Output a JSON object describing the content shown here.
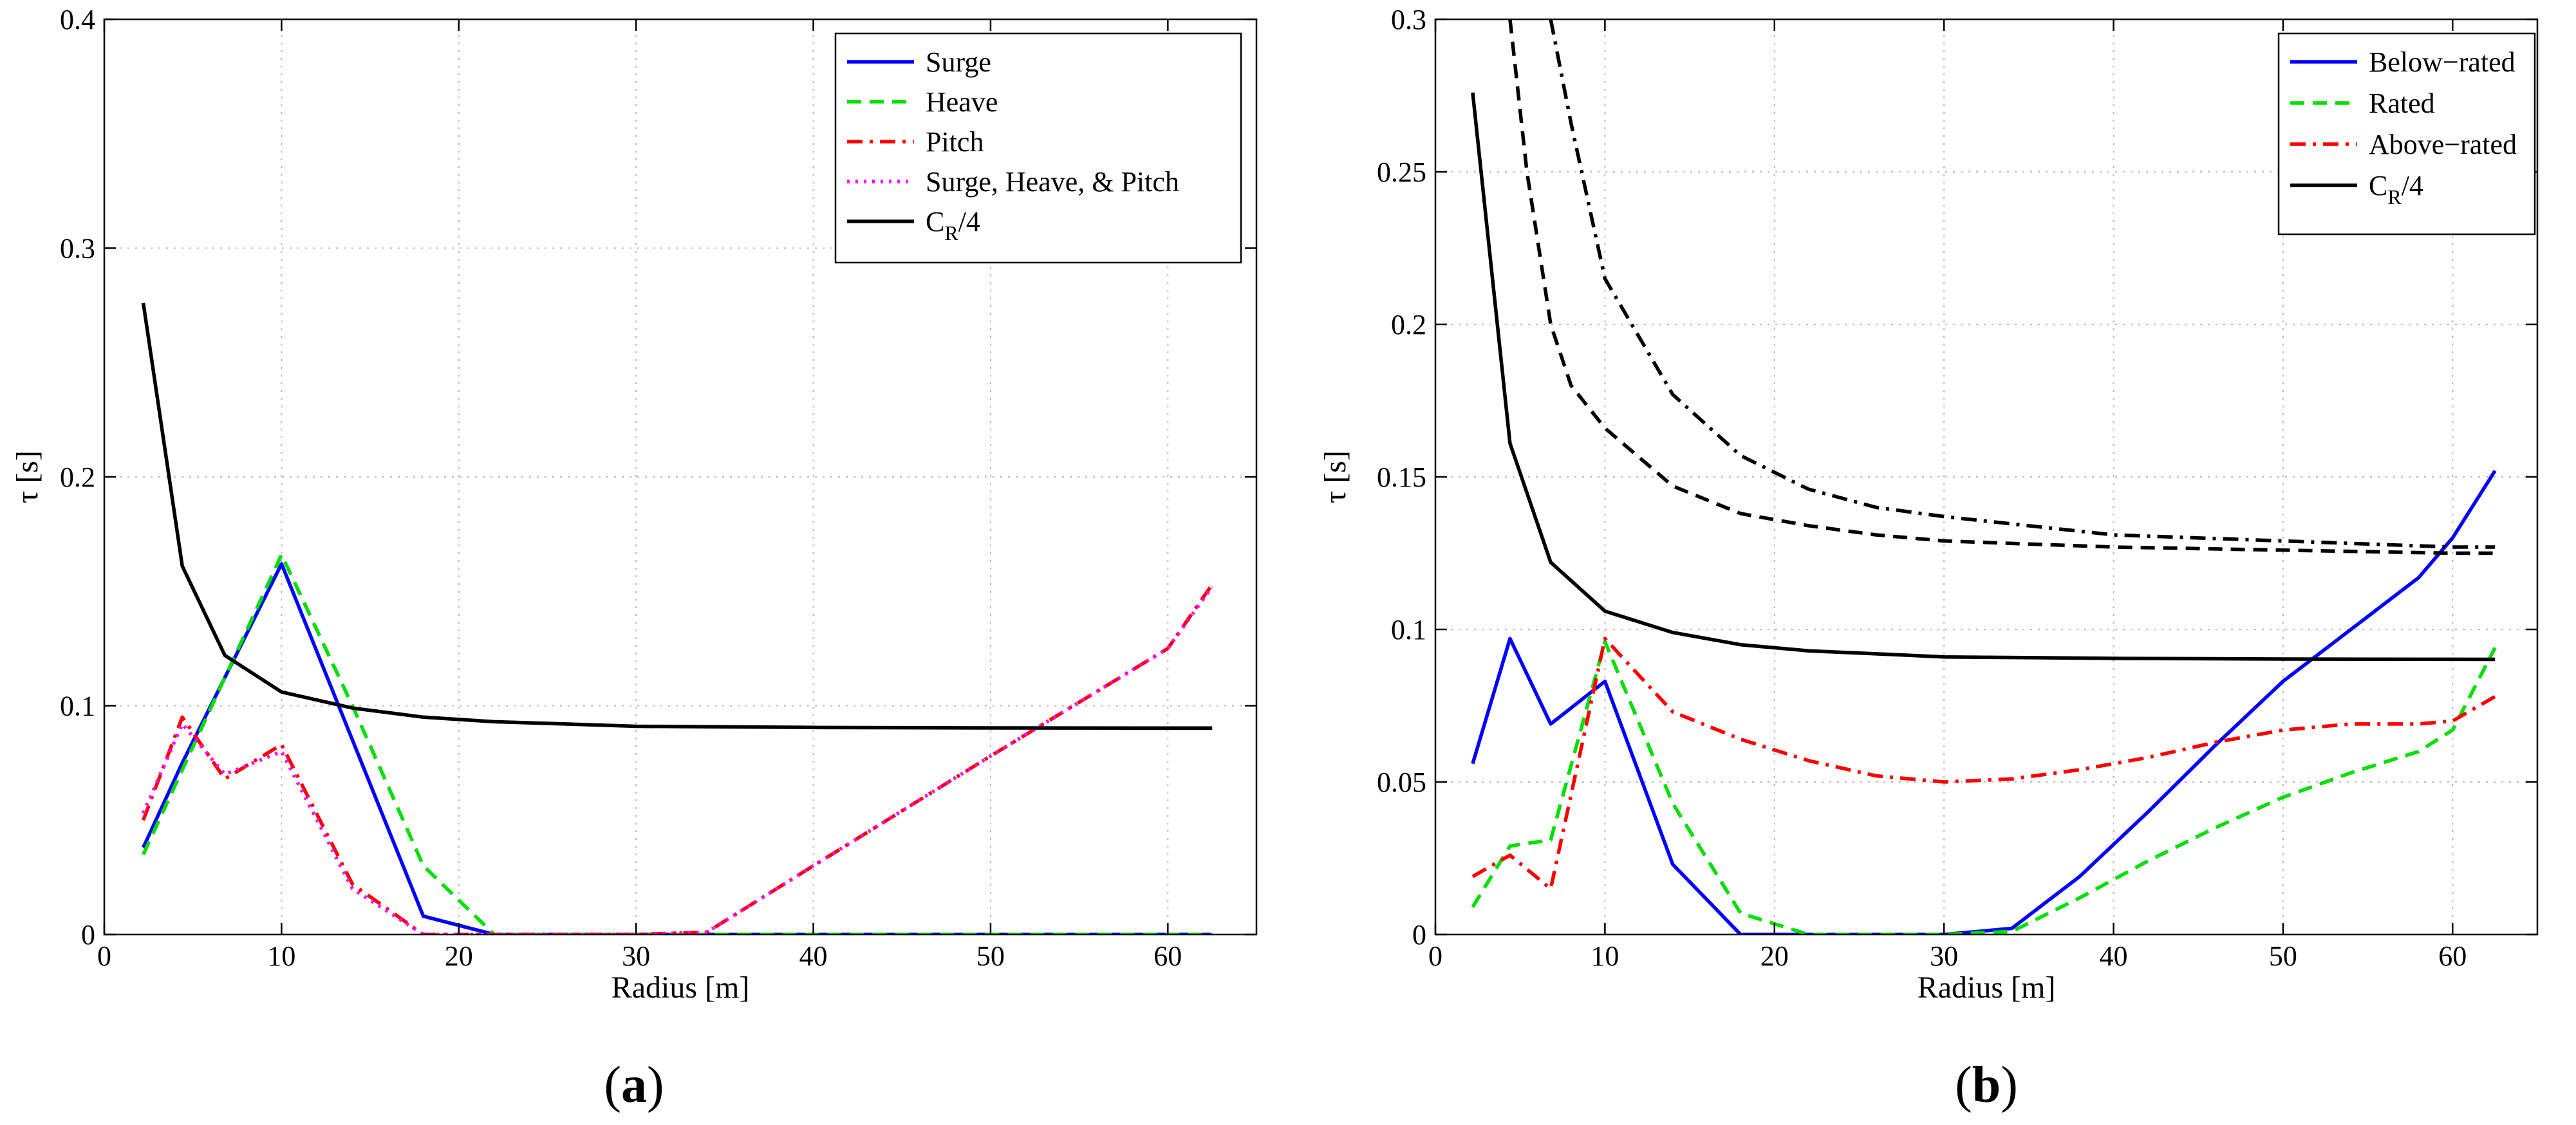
{
  "chart_data": [
    {
      "type": "line",
      "caption": {
        "open": "(",
        "letter": "a",
        "close": ")"
      },
      "xlabel": "Radius [m]",
      "ylabel": "τ [s]",
      "xlim": [
        0,
        65
      ],
      "ylim": [
        0,
        0.4
      ],
      "xticks": [
        0,
        10,
        20,
        30,
        40,
        50,
        60
      ],
      "yticks": [
        0,
        0.1,
        0.2,
        0.3,
        0.4
      ],
      "ytick_labels": [
        "0",
        "0.1",
        "0.2",
        "0.3",
        "0.4"
      ],
      "grid": true,
      "legend_position": "top-right",
      "series": [
        {
          "name": "Surge",
          "label": {
            "main": "Surge",
            "sub": "",
            "post": ""
          },
          "color": "#0000ff",
          "dash": "solid",
          "x": [
            2.2,
            4.4,
            10.0,
            18.0,
            22.0,
            62.5
          ],
          "y": [
            0.038,
            0.075,
            0.162,
            0.008,
            0.0,
            0.0
          ]
        },
        {
          "name": "Heave",
          "label": {
            "main": "Heave",
            "sub": "",
            "post": ""
          },
          "color": "#00e000",
          "dash": "dashed",
          "x": [
            2.2,
            10.0,
            14.0,
            18.0,
            22.0,
            62.5
          ],
          "y": [
            0.035,
            0.166,
            0.1,
            0.03,
            0.0,
            0.0
          ]
        },
        {
          "name": "Pitch",
          "label": {
            "main": "Pitch",
            "sub": "",
            "post": ""
          },
          "color": "#ff0000",
          "dash": "dashdot",
          "x": [
            2.2,
            4.4,
            6.8,
            10.0,
            14.0,
            18.0,
            30.0,
            34.0,
            40.0,
            50.0,
            60.0,
            62.5
          ],
          "y": [
            0.05,
            0.095,
            0.068,
            0.083,
            0.022,
            0.0,
            0.0,
            0.001,
            0.03,
            0.078,
            0.125,
            0.153
          ]
        },
        {
          "name": "Surge, Heave, & Pitch",
          "label": {
            "main": "Surge, Heave, & Pitch",
            "sub": "",
            "post": ""
          },
          "color": "#ff00ff",
          "dash": "dotted",
          "x": [
            2.2,
            4.4,
            6.8,
            10.0,
            14.0,
            18.0,
            30.0,
            34.0,
            40.0,
            50.0,
            60.0,
            62.5
          ],
          "y": [
            0.053,
            0.092,
            0.07,
            0.08,
            0.02,
            0.0,
            0.0,
            0.001,
            0.03,
            0.078,
            0.125,
            0.152
          ]
        },
        {
          "name": "C_R/4",
          "label": {
            "main": "C",
            "sub": "R",
            "post": "/4"
          },
          "color": "#000000",
          "dash": "solid",
          "x": [
            2.2,
            4.4,
            6.8,
            10.0,
            14.0,
            18.0,
            22.0,
            26.0,
            30.0,
            40.0,
            50.0,
            62.5
          ],
          "y": [
            0.276,
            0.161,
            0.122,
            0.106,
            0.099,
            0.095,
            0.093,
            0.092,
            0.091,
            0.0905,
            0.0903,
            0.0902
          ]
        }
      ]
    },
    {
      "type": "line",
      "caption": {
        "open": "(",
        "letter": "b",
        "close": ")"
      },
      "xlabel": "Radius [m]",
      "ylabel": "τ [s]",
      "xlim": [
        0,
        65
      ],
      "ylim": [
        0,
        0.3
      ],
      "xticks": [
        0,
        10,
        20,
        30,
        40,
        50,
        60
      ],
      "yticks": [
        0,
        0.05,
        0.1,
        0.15,
        0.2,
        0.25,
        0.3
      ],
      "ytick_labels": [
        "0",
        "0.05",
        "0.1",
        "0.15",
        "0.2",
        "0.25",
        "0.3"
      ],
      "grid": true,
      "legend_position": "top-right",
      "series": [
        {
          "name": "Below−rated",
          "label": {
            "main": "Below−rated",
            "sub": "",
            "post": ""
          },
          "color": "#0000ff",
          "dash": "solid",
          "x": [
            2.2,
            4.4,
            6.8,
            10.0,
            14.0,
            18.0,
            22.0,
            30.0,
            34.0,
            38.0,
            42.0,
            46.0,
            50.0,
            54.0,
            58.0,
            60.0,
            62.5
          ],
          "y": [
            0.056,
            0.097,
            0.069,
            0.083,
            0.023,
            0.0,
            0.0,
            0.0,
            0.002,
            0.019,
            0.04,
            0.062,
            0.083,
            0.1,
            0.117,
            0.13,
            0.152
          ]
        },
        {
          "name": "Rated",
          "label": {
            "main": "Rated",
            "sub": "",
            "post": ""
          },
          "color": "#00e000",
          "dash": "dashed",
          "x": [
            2.2,
            4.4,
            6.8,
            10.0,
            14.0,
            18.0,
            22.0,
            30.0,
            34.0,
            38.0,
            42.0,
            46.0,
            50.0,
            54.0,
            58.0,
            60.0,
            62.5
          ],
          "y": [
            0.009,
            0.029,
            0.031,
            0.096,
            0.043,
            0.007,
            0.0,
            0.0,
            0.001,
            0.012,
            0.024,
            0.035,
            0.045,
            0.053,
            0.06,
            0.067,
            0.094
          ]
        },
        {
          "name": "Above−rated",
          "label": {
            "main": "Above−rated",
            "sub": "",
            "post": ""
          },
          "color": "#ff0000",
          "dash": "dashdot",
          "x": [
            2.2,
            4.4,
            6.8,
            10.0,
            14.0,
            18.0,
            22.0,
            26.0,
            30.0,
            34.0,
            38.0,
            42.0,
            46.0,
            50.0,
            54.0,
            58.0,
            60.0,
            62.5
          ],
          "y": [
            0.019,
            0.026,
            0.015,
            0.097,
            0.073,
            0.064,
            0.057,
            0.052,
            0.05,
            0.051,
            0.054,
            0.058,
            0.063,
            0.067,
            0.069,
            0.069,
            0.07,
            0.078
          ]
        },
        {
          "name": "C_R/4",
          "label": {
            "main": "C",
            "sub": "R",
            "post": "/4"
          },
          "color": "#000000",
          "dash": "solid",
          "x": [
            2.2,
            4.4,
            6.8,
            10.0,
            14.0,
            18.0,
            22.0,
            26.0,
            30.0,
            40.0,
            50.0,
            62.5
          ],
          "y": [
            0.276,
            0.161,
            0.122,
            0.106,
            0.099,
            0.095,
            0.093,
            0.092,
            0.091,
            0.0905,
            0.0903,
            0.0902
          ]
        },
        {
          "name": "",
          "legend": false,
          "color": "#000000",
          "dash": "dashed",
          "x": [
            4.4,
            5.4,
            6.8,
            8.0,
            10.0,
            14.0,
            18.0,
            22.0,
            26.0,
            30.0,
            40.0,
            50.0,
            60.0,
            62.5
          ],
          "y": [
            0.3,
            0.25,
            0.2,
            0.18,
            0.166,
            0.147,
            0.138,
            0.134,
            0.131,
            0.129,
            0.127,
            0.126,
            0.125,
            0.125
          ]
        },
        {
          "name": "",
          "legend": false,
          "color": "#000000",
          "dash": "dashdot",
          "x": [
            6.8,
            8.0,
            10.0,
            14.0,
            18.0,
            22.0,
            26.0,
            30.0,
            40.0,
            50.0,
            60.0,
            62.5
          ],
          "y": [
            0.3,
            0.266,
            0.215,
            0.177,
            0.157,
            0.146,
            0.14,
            0.137,
            0.131,
            0.129,
            0.127,
            0.127
          ]
        }
      ]
    }
  ]
}
